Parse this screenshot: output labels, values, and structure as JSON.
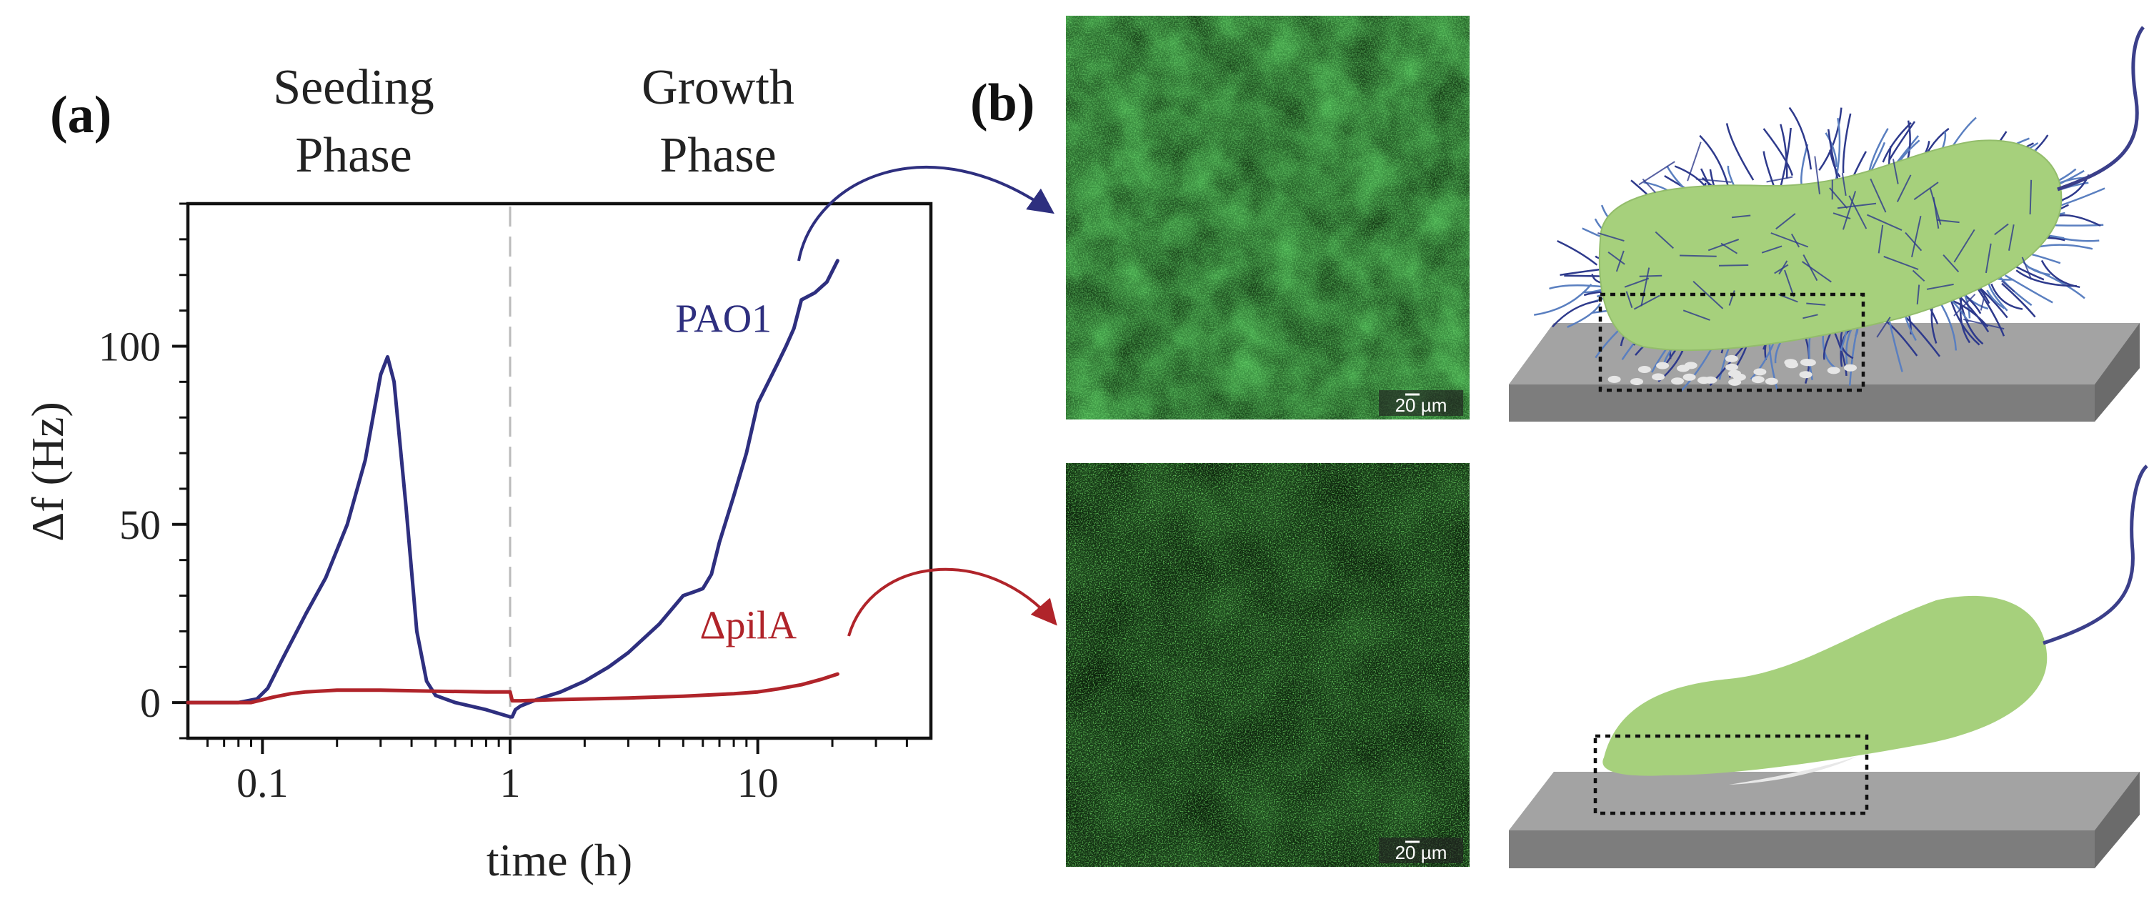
{
  "panels": {
    "a_label": "(a)",
    "b_label": "(b)"
  },
  "phases": {
    "seeding_line1": "Seeding",
    "seeding_line2": "Phase",
    "growth_line1": "Growth",
    "growth_line2": "Phase"
  },
  "micrographs": {
    "scale_bar_label": "20 µm"
  },
  "colors": {
    "pao1": "#2e2f7f",
    "pila": "#b0242a",
    "cell_fill": "#a6d07c",
    "surface": "#9a9a9a"
  },
  "chart_data": {
    "type": "line",
    "title": "",
    "xlabel": "time (h)",
    "ylabel": "Δf (Hz)",
    "xscale": "log",
    "xlim": [
      0.05,
      50
    ],
    "ylim": [
      -10,
      140
    ],
    "x_ticks": [
      0.1,
      1,
      10
    ],
    "x_tick_labels": [
      "0.1",
      "1",
      "10"
    ],
    "y_ticks": [
      0,
      50,
      100
    ],
    "y_tick_labels": [
      "0",
      "50",
      "100"
    ],
    "phase_divider_x": 1,
    "series": [
      {
        "name": "PAO1",
        "x": [
          0.05,
          0.08,
          0.095,
          0.105,
          0.12,
          0.15,
          0.18,
          0.22,
          0.26,
          0.3,
          0.32,
          0.34,
          0.38,
          0.42,
          0.46,
          0.5,
          0.6,
          0.8,
          1.0,
          1.02,
          1.05,
          1.1,
          1.3,
          1.6,
          2,
          2.5,
          3,
          4,
          5,
          5.5,
          6,
          6.5,
          7,
          8,
          9,
          10,
          12,
          13,
          14,
          15,
          17,
          19,
          21
        ],
        "values": [
          0,
          0,
          1,
          4,
          12,
          25,
          35,
          50,
          68,
          92,
          97,
          90,
          55,
          20,
          6,
          2,
          0,
          -2,
          -4,
          -4,
          -2,
          -1,
          1,
          3,
          6,
          10,
          14,
          22,
          30,
          31,
          32,
          36,
          45,
          58,
          70,
          84,
          95,
          100,
          105,
          113,
          115,
          118,
          124
        ]
      },
      {
        "name": "ΔpilA",
        "x": [
          0.05,
          0.09,
          0.11,
          0.13,
          0.15,
          0.2,
          0.3,
          0.5,
          0.8,
          1.0,
          1.02,
          1.1,
          1.5,
          2,
          3,
          5,
          8,
          10,
          12,
          15,
          18,
          21
        ],
        "values": [
          0,
          0,
          1.5,
          2.5,
          3,
          3.5,
          3.5,
          3.2,
          3,
          3,
          0.5,
          0.5,
          0.8,
          1,
          1.3,
          1.8,
          2.5,
          3,
          3.8,
          5,
          6.5,
          8
        ]
      }
    ]
  }
}
